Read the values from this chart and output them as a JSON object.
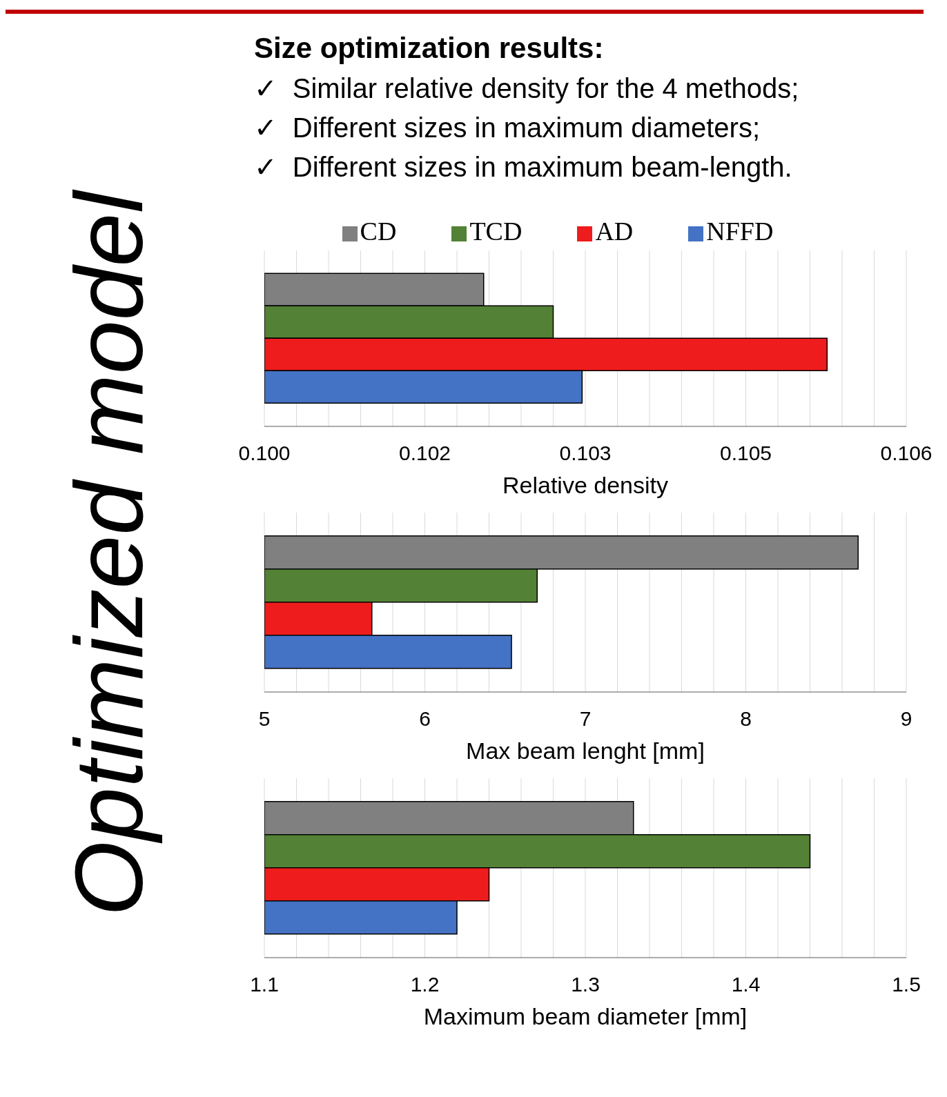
{
  "chart_data": [
    {
      "type": "other",
      "title": "Optimized model"
    },
    {
      "type": "other",
      "title": "Size optimization results:",
      "annotations": [
        "✓  Similar relative density for the 4 methods;",
        "✓  Different sizes in maximum diameters;",
        "✓  Different sizes in maximum beam-length."
      ]
    },
    {
      "type": "bar",
      "orientation": "horizontal",
      "categories": [
        null
      ],
      "series": [
        {
          "name": "CD",
          "color": "#808080",
          "values": [
            0.10205
          ]
        },
        {
          "name": "TCD",
          "color": "#538135",
          "values": [
            0.1027
          ]
        },
        {
          "name": "AD",
          "color": "#ee1c1c",
          "values": [
            0.10526
          ]
        },
        {
          "name": "NFFD",
          "color": "#4472c4",
          "values": [
            0.10297
          ]
        }
      ],
      "xlabel": "Relative density",
      "xlim": [
        0.1,
        0.106
      ],
      "xticks": [
        {
          "value": 0.1,
          "label": "0.100"
        },
        {
          "value": 0.1003,
          "label": null
        },
        {
          "value": 0.1006,
          "label": null
        },
        {
          "value": 0.1009,
          "label": null
        },
        {
          "value": 0.1012,
          "label": null
        },
        {
          "value": 0.1015,
          "label": "0.102"
        },
        {
          "value": 0.1018,
          "label": null
        },
        {
          "value": 0.1021,
          "label": null
        },
        {
          "value": 0.1024,
          "label": null
        },
        {
          "value": 0.1027,
          "label": null
        },
        {
          "value": 0.103,
          "label": "0.103"
        },
        {
          "value": 0.1033,
          "label": null
        },
        {
          "value": 0.1036,
          "label": null
        },
        {
          "value": 0.1039,
          "label": null
        },
        {
          "value": 0.1042,
          "label": null
        },
        {
          "value": 0.1045,
          "label": "0.105"
        },
        {
          "value": 0.1048,
          "label": null
        },
        {
          "value": 0.1051,
          "label": null
        },
        {
          "value": 0.1054,
          "label": null
        },
        {
          "value": 0.1057,
          "label": null
        },
        {
          "value": 0.106,
          "label": "0.106"
        }
      ],
      "grid": "x",
      "legend": "top"
    },
    {
      "type": "bar",
      "orientation": "horizontal",
      "categories": [
        null
      ],
      "series": [
        {
          "color": "#808080",
          "values": [
            8.7
          ]
        },
        {
          "color": "#538135",
          "values": [
            6.7
          ]
        },
        {
          "color": "#ee1c1c",
          "values": [
            5.67
          ]
        },
        {
          "color": "#4472c4",
          "values": [
            6.54
          ]
        }
      ],
      "xlabel": "Max beam lenght [mm]",
      "xlim": [
        5,
        9
      ],
      "xticks": [
        5,
        {
          "value": 5.2,
          "label": null
        },
        {
          "value": 5.4,
          "label": null
        },
        {
          "value": 5.6,
          "label": null
        },
        {
          "value": 5.8,
          "label": null
        },
        6,
        {
          "value": 6.2,
          "label": null
        },
        {
          "value": 6.4,
          "label": null
        },
        {
          "value": 6.6,
          "label": null
        },
        {
          "value": 6.8,
          "label": null
        },
        7,
        {
          "value": 7.2,
          "label": null
        },
        {
          "value": 7.4,
          "label": null
        },
        {
          "value": 7.6,
          "label": null
        },
        {
          "value": 7.8,
          "label": null
        },
        8,
        {
          "value": 8.2,
          "label": null
        },
        {
          "value": 8.4,
          "label": null
        },
        {
          "value": 8.6,
          "label": null
        },
        {
          "value": 8.8,
          "label": null
        },
        9
      ],
      "grid": "x"
    },
    {
      "type": "bar",
      "orientation": "horizontal",
      "categories": [
        null
      ],
      "series": [
        {
          "color": "#808080",
          "values": [
            1.33
          ]
        },
        {
          "color": "#538135",
          "values": [
            1.44
          ]
        },
        {
          "color": "#ee1c1c",
          "values": [
            1.24
          ]
        },
        {
          "color": "#4472c4",
          "values": [
            1.22
          ]
        }
      ],
      "xlabel": "Maximum beam diameter [mm]",
      "xlim": [
        1.1,
        1.5
      ],
      "xticks": [
        1.1,
        {
          "value": 1.12,
          "label": null
        },
        {
          "value": 1.14,
          "label": null
        },
        {
          "value": 1.16,
          "label": null
        },
        {
          "value": 1.18,
          "label": null
        },
        1.2,
        {
          "value": 1.22,
          "label": null
        },
        {
          "value": 1.24,
          "label": null
        },
        {
          "value": 1.26,
          "label": null
        },
        {
          "value": 1.28,
          "label": null
        },
        1.3,
        {
          "value": 1.32,
          "label": null
        },
        {
          "value": 1.34,
          "label": null
        },
        {
          "value": 1.36,
          "label": null
        },
        {
          "value": 1.38,
          "label": null
        },
        1.4,
        {
          "value": 1.42,
          "label": null
        },
        {
          "value": 1.44,
          "label": null
        },
        {
          "value": 1.46,
          "label": null
        },
        {
          "value": 1.48,
          "label": null
        },
        1.5
      ],
      "grid": "x"
    }
  ]
}
